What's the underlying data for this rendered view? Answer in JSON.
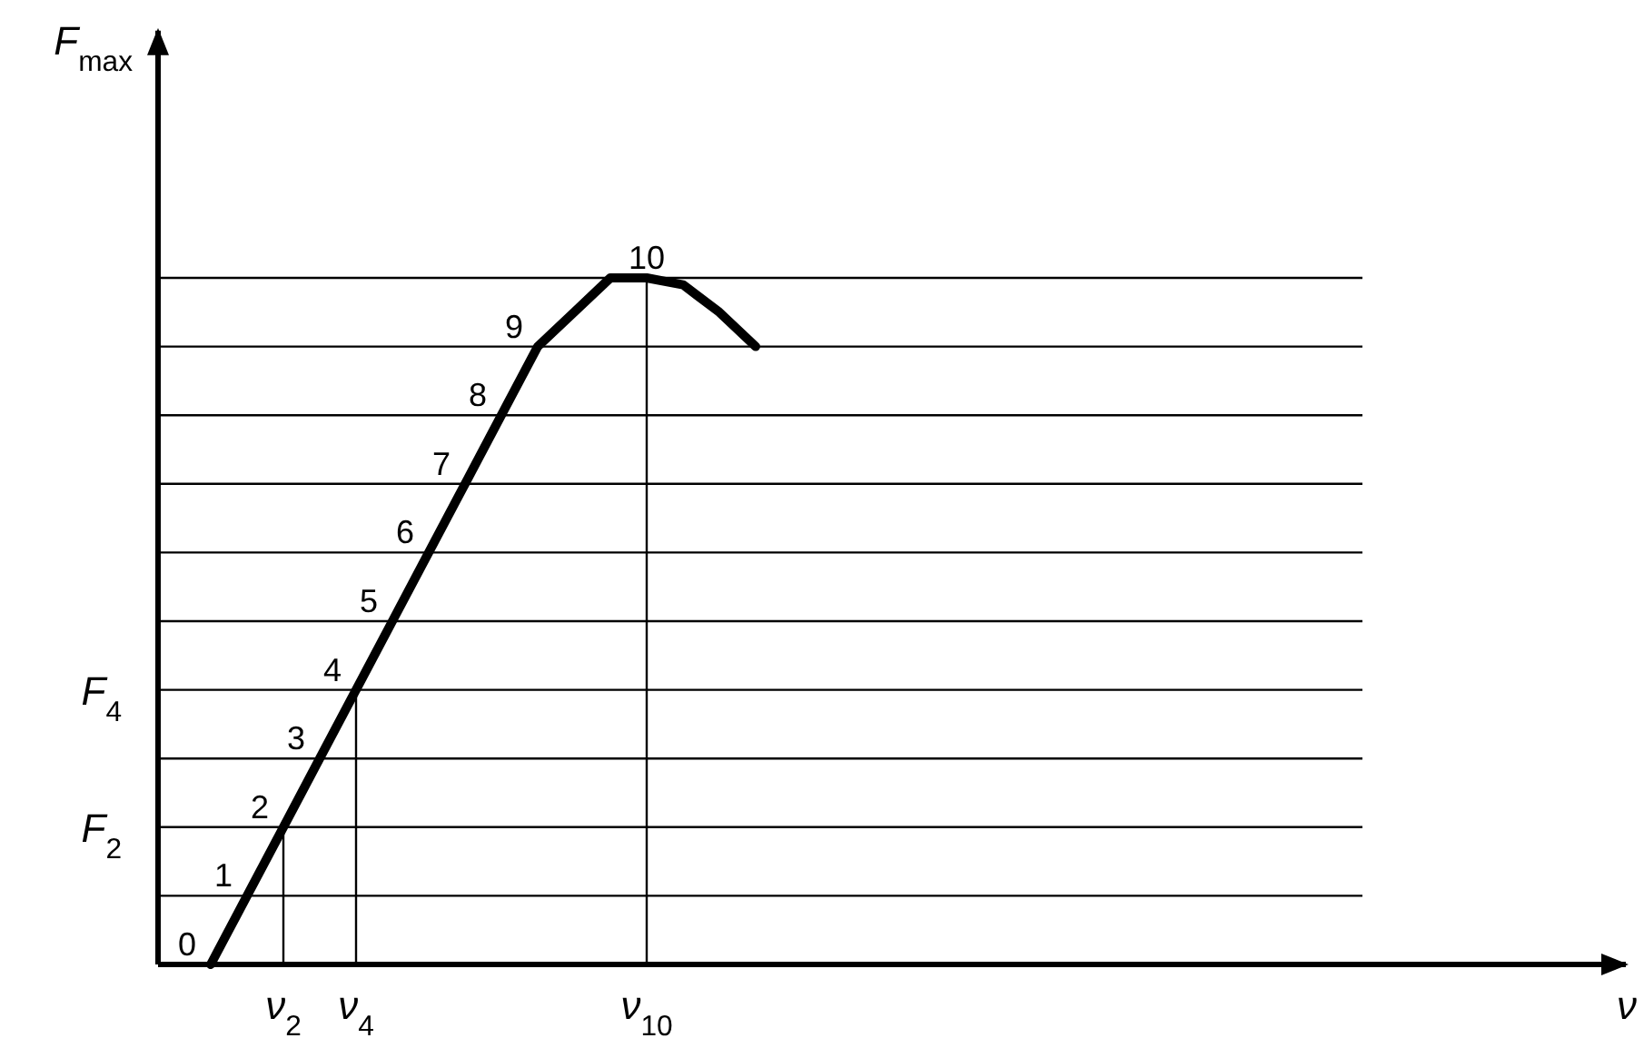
{
  "chart_data": {
    "type": "line",
    "ylabel": "F$_{max}$",
    "categories": [
      null,
      null,
      "ν$_{2}$",
      null,
      "ν$_{4}$",
      null,
      null,
      null,
      null,
      null,
      null,
      null,
      "ν$_{10}$",
      null,
      null,
      null
    ],
    "series": [
      {
        "color": "#000000",
        "values": [
          0,
          1,
          2,
          3,
          4,
          5,
          6,
          7,
          8,
          9,
          9.5,
          10,
          10,
          9.9,
          9.5,
          9
        ],
        "value_labels": [
          "0",
          "1",
          "2",
          "3",
          "4",
          "5",
          "6",
          "7",
          "8",
          "9",
          null,
          null,
          "10",
          null,
          null,
          null
        ]
      }
    ],
    "ylim": [
      0,
      13.6
    ],
    "yticks": [
      {
        "value": 1,
        "label": null
      },
      {
        "value": 2,
        "label": "F$_{2}$"
      },
      {
        "value": 3,
        "label": null
      },
      {
        "value": 4,
        "label": "F$_{4}$"
      },
      {
        "value": 5,
        "label": null
      },
      {
        "value": 6,
        "label": null
      },
      {
        "value": 7,
        "label": null
      },
      {
        "value": 8,
        "label": null
      },
      {
        "value": 9,
        "label": null
      },
      {
        "value": 10,
        "label": null
      }
    ],
    "grid": "y",
    "marker": "none",
    "line_style": "solid",
    "ref_lines": [
      {
        "axis": "x",
        "value": "ν$_{2}$"
      },
      {
        "axis": "x",
        "value": "ν$_{4}$"
      },
      {
        "axis": "x",
        "value": "ν$_{10}$"
      }
    ],
    "annotations": [
      "ν"
    ]
  }
}
